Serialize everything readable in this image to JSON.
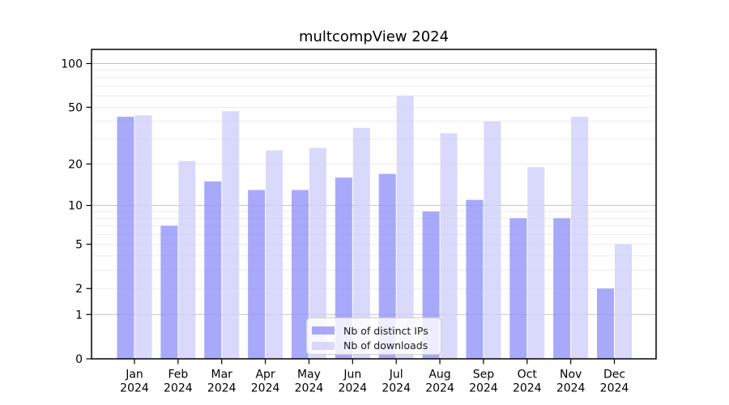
{
  "chart_data": {
    "type": "bar",
    "title": "multcompView 2024",
    "categories": [
      "Jan 2024",
      "Feb 2024",
      "Mar 2024",
      "Apr 2024",
      "May 2024",
      "Jun 2024",
      "Jul 2024",
      "Aug 2024",
      "Sep 2024",
      "Oct 2024",
      "Nov 2024",
      "Dec 2024"
    ],
    "month_labels": [
      "Jan",
      "Feb",
      "Mar",
      "Apr",
      "May",
      "Jun",
      "Jul",
      "Aug",
      "Sep",
      "Oct",
      "Nov",
      "Dec"
    ],
    "year_label": "2024",
    "series": [
      {
        "name": "Nb of distinct IPs",
        "color": "rgba(148,148,250,0.8)",
        "color_on_white": "#a9a9fa",
        "values": [
          43,
          7,
          15,
          13,
          13,
          16,
          17,
          9,
          11,
          8,
          8,
          2
        ]
      },
      {
        "name": "Nb of downloads",
        "color": "rgba(208,208,250,0.8)",
        "color_on_white": "#d9d9fa",
        "values": [
          44,
          21,
          47,
          25,
          26,
          36,
          60,
          33,
          40,
          19,
          43,
          5
        ]
      }
    ],
    "y_scale": "log1p",
    "ylim": [
      0,
      125
    ],
    "y_ticks": [
      0,
      1,
      2,
      5,
      10,
      20,
      50,
      100
    ],
    "y_major_gridlines": [
      1,
      10,
      100
    ],
    "y_minor_gridlines": [
      2,
      3,
      4,
      5,
      6,
      7,
      8,
      9,
      20,
      30,
      40,
      50,
      60,
      70,
      80,
      90
    ],
    "grid": true,
    "legend_position": "lower center",
    "xlabel": "",
    "ylabel": ""
  },
  "style": {
    "grid_minor_color": "#ebebeb",
    "grid_major_color": "#c2c2c2",
    "spine_color": "#000000",
    "tick_color": "#000000",
    "background": "#ffffff"
  }
}
